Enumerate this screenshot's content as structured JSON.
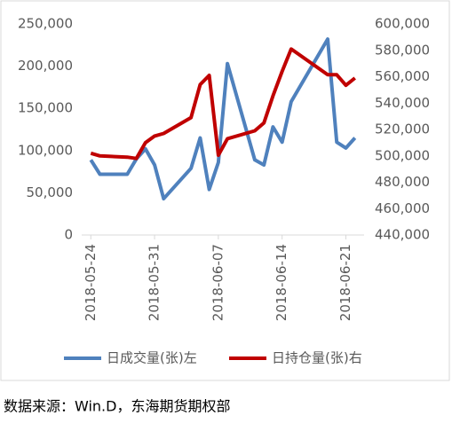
{
  "chart_data": {
    "type": "line",
    "x": [
      "2018-05-24",
      "2018-05-25",
      "2018-05-28",
      "2018-05-29",
      "2018-05-30",
      "2018-05-31",
      "2018-06-01",
      "2018-06-04",
      "2018-06-05",
      "2018-06-06",
      "2018-06-07",
      "2018-06-08",
      "2018-06-11",
      "2018-06-12",
      "2018-06-13",
      "2018-06-14",
      "2018-06-15",
      "2018-06-19",
      "2018-06-20",
      "2018-06-21",
      "2018-06-22"
    ],
    "series": [
      {
        "name": "日成交量(张)左",
        "color": "#4f81bd",
        "axis": "y",
        "values": [
          89000,
          72000,
          72000,
          90000,
          102000,
          83000,
          43000,
          79000,
          115000,
          54000,
          86000,
          203000,
          89000,
          83000,
          128000,
          110000,
          158000,
          232000,
          110000,
          103000,
          115000
        ]
      },
      {
        "name": "日持仓量(张)右",
        "color": "#c00000",
        "axis": "y2",
        "values": [
          502000,
          500000,
          499000,
          498000,
          510000,
          515000,
          517000,
          529000,
          554000,
          561000,
          500500,
          513000,
          519000,
          525000,
          545500,
          564000,
          581000,
          561500,
          561500,
          553500,
          559000
        ]
      }
    ],
    "xlim": [
      "2018-05-23",
      "2018-06-23"
    ],
    "xticks": [
      "2018-05-24",
      "2018-05-31",
      "2018-06-07",
      "2018-06-14",
      "2018-06-21"
    ],
    "ylim": [
      0,
      250000
    ],
    "yticks": [
      0,
      {
        "value": 50000,
        "label": "50,000"
      },
      {
        "value": 100000,
        "label": "100,000"
      },
      {
        "value": 150000,
        "label": "150,000"
      },
      {
        "value": 200000,
        "label": "200,000"
      },
      {
        "value": 250000,
        "label": "250,000"
      }
    ],
    "y2lim": [
      440000,
      600000
    ],
    "y2ticks": [
      {
        "value": 440000,
        "label": "440,000"
      },
      {
        "value": 460000,
        "label": "460,000"
      },
      {
        "value": 480000,
        "label": "480,000"
      },
      {
        "value": 500000,
        "label": "500,000"
      },
      {
        "value": 520000,
        "label": "520,000"
      },
      {
        "value": 540000,
        "label": "540,000"
      },
      {
        "value": 560000,
        "label": "560,000"
      },
      {
        "value": 580000,
        "label": "580,000"
      },
      {
        "value": 600000,
        "label": "600,000"
      }
    ],
    "legend": "bottom"
  },
  "source": "数据来源：Win.D，东海期货期权部"
}
